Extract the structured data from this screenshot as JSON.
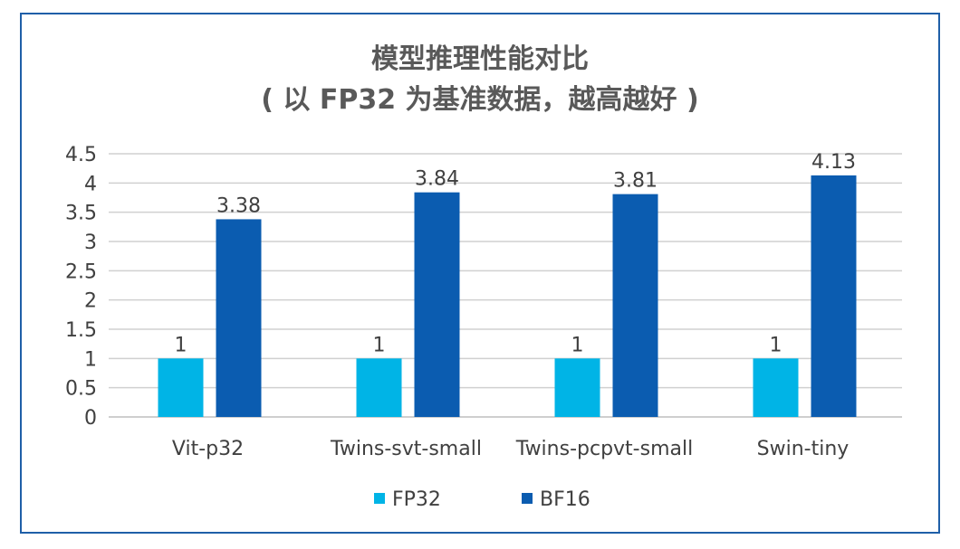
{
  "chart_data": {
    "type": "bar",
    "title": "模型推理性能对比",
    "subtitle": "( 以 FP32 为基准数据，越高越好 )",
    "categories": [
      "Vit-p32",
      "Twins-svt-small",
      "Twins-pcpvt-small",
      "Swin-tiny"
    ],
    "series": [
      {
        "name": "FP32",
        "values": [
          1,
          1,
          1,
          1
        ],
        "color": "#00b4e6",
        "labels": [
          "1",
          "1",
          "1",
          "1"
        ]
      },
      {
        "name": "BF16",
        "values": [
          3.38,
          3.84,
          3.81,
          4.13
        ],
        "color": "#0b5cb0",
        "labels": [
          "3.38",
          "3.84",
          "3.81",
          "4.13"
        ]
      }
    ],
    "ylim": [
      0,
      4.5
    ],
    "yticks": [
      "0",
      "0.5",
      "1",
      "1.5",
      "2",
      "2.5",
      "3",
      "3.5",
      "4",
      "4.5"
    ],
    "grid": true,
    "legend_position": "bottom",
    "frame_color": "#1f5fa8"
  }
}
